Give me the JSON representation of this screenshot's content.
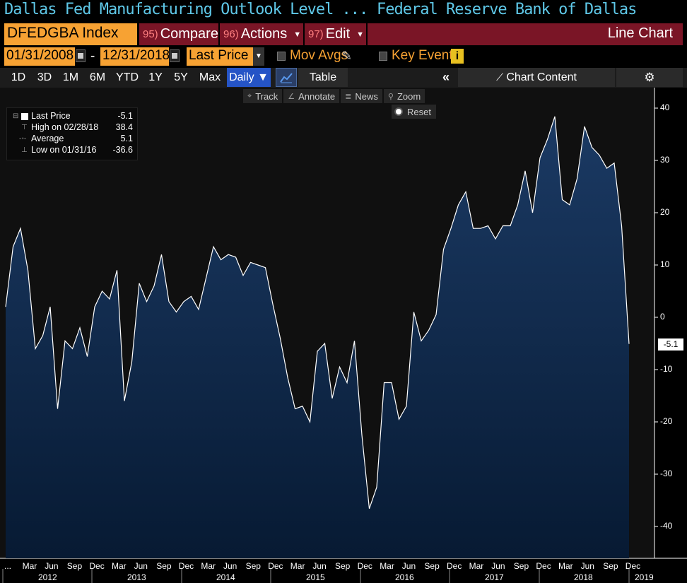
{
  "header": {
    "title_left": "Dallas Fed Manufacturing Outlook Level ...",
    "title_right": "Federal Reserve Bank of Dallas"
  },
  "command_bar": {
    "ticker": "DFEDGBA Index",
    "compare": {
      "num": "95)",
      "label": "Compare"
    },
    "actions": {
      "num": "96)",
      "label": "Actions"
    },
    "edit": {
      "num": "97)",
      "label": "Edit"
    },
    "chart_type_label": "Line Chart"
  },
  "date_bar": {
    "start_date": "01/31/2008",
    "end_date": "12/31/2018",
    "separator": "-",
    "price_field": "Last Price",
    "mov_avgs_label": "Mov Avgs",
    "key_events_label": "Key Events"
  },
  "period_bar": {
    "periods": [
      "1D",
      "3D",
      "1M",
      "6M",
      "YTD",
      "1Y",
      "5Y",
      "Max"
    ],
    "frequency": "Daily",
    "table_label": "Table",
    "chart_content_label": "Chart Content"
  },
  "tools": {
    "track": "Track",
    "annotate": "Annotate",
    "news": "News",
    "zoom": "Zoom",
    "reset": "Reset"
  },
  "legend": {
    "rows": [
      {
        "label": "Last Price",
        "value": "-5.1"
      },
      {
        "label": "High on 02/28/18",
        "value": "38.4"
      },
      {
        "label": "Average",
        "value": "5.1"
      },
      {
        "label": "Low on 01/31/16",
        "value": "-36.6"
      }
    ]
  },
  "last_price_tag": "-5.1",
  "colors": {
    "title": "#5fc8e8",
    "orange": "#f7a233",
    "red_bar": "#7a1526",
    "blue_button": "#2554c6",
    "area_fill_top": "#1a3a63",
    "area_fill_bottom": "#081a33",
    "line": "#ffffff"
  },
  "chart_data": {
    "type": "area",
    "title": "",
    "ylim": [
      -45,
      42
    ],
    "yticks": [
      40,
      30,
      20,
      10,
      0,
      -10,
      -20,
      -30,
      -40
    ],
    "x_tick_labels": [
      "...",
      "Mar",
      "Jun",
      "Sep",
      "Dec",
      "Mar",
      "Jun",
      "Sep",
      "Dec",
      "Mar",
      "Jun",
      "Sep",
      "Dec",
      "Mar",
      "Jun",
      "Sep",
      "Dec",
      "Mar",
      "Jun",
      "Sep",
      "Dec",
      "Mar",
      "Jun",
      "Sep",
      "Dec",
      "Mar",
      "Jun",
      "Sep",
      "Dec"
    ],
    "year_labels": [
      "2012",
      "2013",
      "2014",
      "2015",
      "2016",
      "2017",
      "2018",
      "2019"
    ],
    "series": [
      {
        "values": [
          2.0,
          13.5,
          17.0,
          9.0,
          -6.0,
          -3.5,
          2.0,
          -17.5,
          -4.5,
          -6.0,
          -2.0,
          -7.5,
          2.0,
          5.0,
          3.5,
          9.0,
          -16.0,
          -8.5,
          6.5,
          3.0,
          6.0,
          12.0,
          3.0,
          1.0,
          3.0,
          4.0,
          1.5,
          7.5,
          13.5,
          11.0,
          12.0,
          11.5,
          8.0,
          10.5,
          10.0,
          9.5,
          2.5,
          -4.0,
          -11.5,
          -17.5,
          -17.0,
          -20.0,
          -6.5,
          -5.0,
          -15.5,
          -9.5,
          -12.5,
          -4.5,
          -22.5,
          -36.6,
          -32.5,
          -12.5,
          -12.5,
          -19.5,
          -17.0,
          1.0,
          -4.5,
          -2.5,
          0.5,
          13.0,
          17.0,
          21.5,
          24.0,
          17.0,
          17.0,
          17.5,
          15.0,
          17.5,
          17.5,
          21.5,
          28.0,
          20.0,
          30.5,
          34.0,
          38.4,
          22.5,
          21.5,
          26.5,
          36.5,
          32.5,
          31.0,
          28.5,
          29.5,
          17.5,
          -5.1
        ]
      }
    ]
  }
}
